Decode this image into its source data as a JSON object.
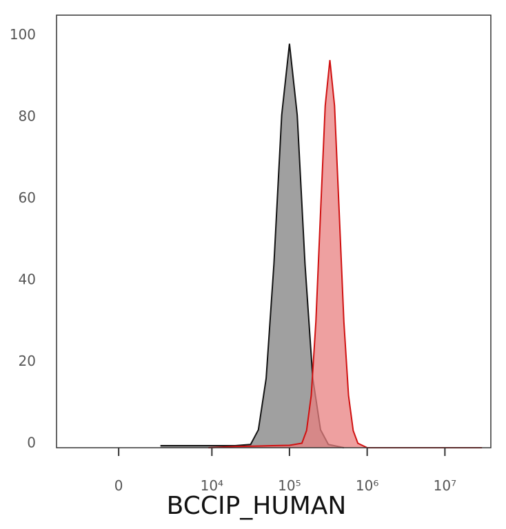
{
  "chart_data": {
    "type": "histogram-overlay",
    "xlabel": "BCCIP_HUMAN",
    "xscale": "biexponential",
    "xlim": [
      -3900,
      39000000
    ],
    "xticks": [
      {
        "value": 0,
        "label": "0"
      },
      {
        "value": 10000,
        "label": "10⁴"
      },
      {
        "value": 100000,
        "label": "10⁵"
      },
      {
        "value": 1000000,
        "label": "10⁶"
      },
      {
        "value": 10000000,
        "label": "10⁷"
      }
    ],
    "ylim": [
      0,
      106
    ],
    "yticks": [
      0,
      20,
      40,
      60,
      80,
      100
    ],
    "series": [
      {
        "color": "#808080",
        "stroke": "#111111",
        "x": [
          2000,
          5000,
          10000,
          20000,
          31623,
          39811,
          50119,
          63096,
          79433,
          100000,
          125893,
          158489,
          199526,
          251189,
          316228,
          501187
        ],
        "values": [
          0.5,
          0.5,
          0.5,
          0.5,
          0.8,
          4.4,
          17,
          45,
          81.5,
          99,
          81.5,
          45,
          17,
          4.4,
          0.8,
          0
        ]
      },
      {
        "color": "#e88080",
        "stroke": "#d01010",
        "x": [
          9000,
          20000,
          60000,
          100000,
          144544,
          165959,
          190546,
          218776,
          251189,
          288403,
          331131,
          380189,
          436516,
          501187,
          575440,
          660693,
          758578,
          1000000,
          30000000
        ],
        "values": [
          0,
          0.3,
          0.5,
          0.6,
          1.1,
          4.2,
          12.8,
          30.9,
          57.7,
          83.8,
          95,
          83.8,
          57.7,
          30.9,
          12.8,
          4.2,
          1.1,
          0,
          0
        ]
      }
    ]
  }
}
